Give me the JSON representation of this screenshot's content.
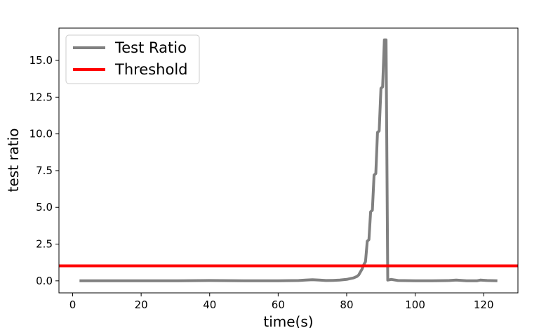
{
  "chart_data": {
    "type": "line",
    "xlabel": "time(s)",
    "ylabel": "test ratio",
    "xlim": [
      -4,
      130
    ],
    "ylim": [
      -0.82,
      17.2
    ],
    "xticks": [
      0,
      20,
      40,
      60,
      80,
      100,
      120
    ],
    "xtick_labels": [
      "0",
      "20",
      "40",
      "60",
      "80",
      "100",
      "120"
    ],
    "yticks": [
      0.0,
      2.5,
      5.0,
      7.5,
      10.0,
      12.5,
      15.0
    ],
    "ytick_labels": [
      "0.0",
      "2.5",
      "5.0",
      "7.5",
      "10.0",
      "12.5",
      "15.0"
    ],
    "grid": false,
    "legend_position": "upper-left",
    "series": [
      {
        "name": "Test Ratio",
        "color": "#808080",
        "x": [
          2,
          10,
          20,
          30,
          40,
          50,
          60,
          66,
          68,
          70,
          72,
          74,
          76,
          78,
          80,
          81,
          82,
          83,
          83.5,
          84,
          84.5,
          85,
          85.5,
          86,
          86.5,
          87,
          87.5,
          88,
          88.5,
          89,
          89.5,
          90,
          90.5,
          91,
          91.5,
          92,
          93,
          95,
          100,
          105,
          110,
          112,
          115,
          118,
          119,
          121,
          124
        ],
        "y": [
          0.0,
          0.0,
          0.0,
          0.0,
          0.02,
          0.0,
          0.0,
          0.02,
          0.05,
          0.08,
          0.05,
          0.02,
          0.03,
          0.05,
          0.1,
          0.15,
          0.2,
          0.3,
          0.4,
          0.6,
          0.8,
          1.1,
          1.3,
          2.7,
          2.8,
          4.7,
          4.8,
          7.2,
          7.3,
          10.1,
          10.2,
          13.1,
          13.2,
          16.4,
          16.4,
          0.05,
          0.1,
          0.02,
          0.0,
          0.0,
          0.02,
          0.05,
          0.0,
          0.0,
          0.05,
          0.02,
          0.0
        ]
      },
      {
        "name": "Threshold",
        "color": "#ff0000",
        "y_constant": 1.02
      }
    ]
  }
}
